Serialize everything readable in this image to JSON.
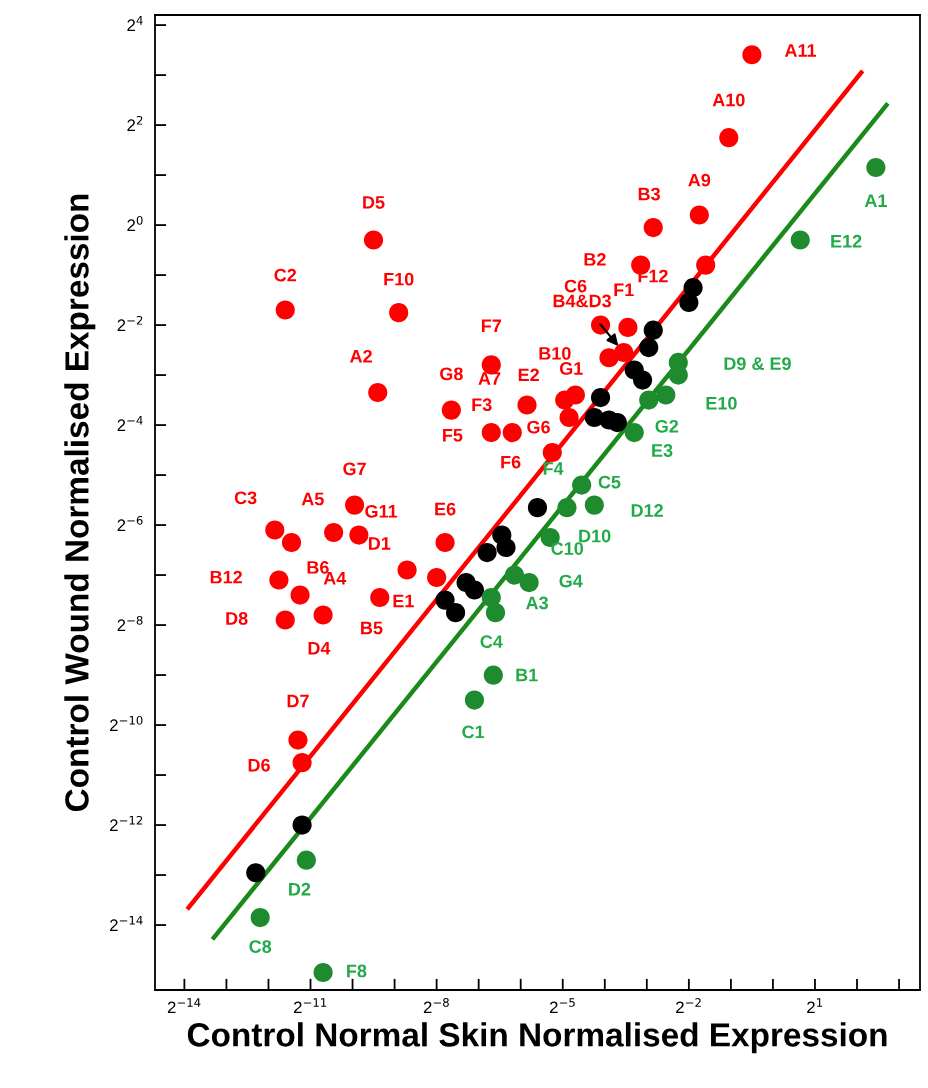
{
  "chart_data": {
    "type": "scatter",
    "xlabel": "Control Normal Skin Normalised Expression",
    "ylabel": "Control Wound Normalised Expression",
    "log": "xy",
    "grid": false,
    "xlim": [
      3.76e-05,
      11.3
    ],
    "ylim": [
      2.48e-05,
      18.4
    ],
    "xticks": [
      {
        "value": 6.103515625e-05,
        "label": "2$^{−14}$"
      },
      {
        "value": 0.0001220703125,
        "label": null
      },
      {
        "value": 0.000244140625,
        "label": null
      },
      {
        "value": 0.00048828125,
        "label": "2$^{−11}$"
      },
      {
        "value": 0.0009765625,
        "label": null
      },
      {
        "value": 0.001953125,
        "label": null
      },
      {
        "value": 0.00390625,
        "label": "2$^{−8}$"
      },
      {
        "value": 0.0078125,
        "label": null
      },
      {
        "value": 0.015625,
        "label": null
      },
      {
        "value": 0.03125,
        "label": "2$^{−5}$"
      },
      {
        "value": 0.0625,
        "label": null
      },
      {
        "value": 0.125,
        "label": null
      },
      {
        "value": 0.25,
        "label": "2$^{−2}$"
      },
      {
        "value": 0.5,
        "label": null
      },
      {
        "value": 1,
        "label": null
      },
      {
        "value": 2,
        "label": "2$^{1}$"
      },
      {
        "value": 4,
        "label": null
      },
      {
        "value": 8,
        "label": null
      }
    ],
    "yticks": [
      {
        "value": 6.103515625e-05,
        "label": "2$^{−14}$"
      },
      {
        "value": 0.0001220703125,
        "label": null
      },
      {
        "value": 0.000244140625,
        "label": "2$^{−12}$"
      },
      {
        "value": 0.00048828125,
        "label": null
      },
      {
        "value": 0.0009765625,
        "label": "2$^{−10}$"
      },
      {
        "value": 0.001953125,
        "label": null
      },
      {
        "value": 0.00390625,
        "label": "2$^{−8}$"
      },
      {
        "value": 0.0078125,
        "label": null
      },
      {
        "value": 0.015625,
        "label": "2$^{−6}$"
      },
      {
        "value": 0.03125,
        "label": null
      },
      {
        "value": 0.0625,
        "label": "2$^{−4}$"
      },
      {
        "value": 0.125,
        "label": null
      },
      {
        "value": 0.25,
        "label": "2$^{−2}$"
      },
      {
        "value": 0.5,
        "label": null
      },
      {
        "value": 1,
        "label": "2$^{0}$"
      },
      {
        "value": 2,
        "label": null
      },
      {
        "value": 4,
        "label": "2$^{2}$"
      },
      {
        "value": 8,
        "label": null
      },
      {
        "value": 16,
        "label": "2$^{4}$"
      }
    ],
    "series": [
      {
        "type": "line",
        "color": "#ff0000",
        "x": [
          6.54e-05,
          4.287
        ],
        "values": [
          7.78e-05,
          8.28
        ]
      },
      {
        "type": "line",
        "color": "#1a8a1a",
        "x": [
          9.92e-05,
          6.5
        ],
        "values": [
          5.13e-05,
          5.28
        ]
      },
      {
        "marker": "circle",
        "color": "#ff0000",
        "x": [
          0.707,
          0.483,
          0.297,
          0.139,
          0.113,
          0.33,
          0.0583,
          0.0915,
          0.0854,
          0.067,
          0.00138,
          0.000322,
          0.00209,
          0.00148,
          0.00962,
          0.00498,
          0.01734,
          0.0323,
          0.0385,
          0.0347,
          0.0136,
          0.00962,
          0.0263,
          0.00101,
          0.000271,
          0.000357,
          0.000715,
          0.001084,
          0.00449,
          0.0024,
          0.00391,
          0.00029,
          0.000411,
          0.00153,
          0.000322,
          0.000601,
          0.000397,
          0.000425
        ],
        "values": [
          10.6,
          3.36,
          1.15,
          0.966,
          0.574,
          0.574,
          0.25,
          0.242,
          0.171,
          0.159,
          0.813,
          0.308,
          0.297,
          0.0981,
          0.144,
          0.0769,
          0.0825,
          0.0884,
          0.0948,
          0.0694,
          0.0563,
          0.0563,
          0.0427,
          0.0206,
          0.0146,
          0.01226,
          0.0141,
          0.0136,
          0.01226,
          0.00838,
          0.00755,
          0.00729,
          0.00592,
          0.00572,
          0.00419,
          0.00449,
          0.000793,
          0.00058
        ]
      },
      {
        "marker": "circle",
        "color": "#000000",
        "x": [
          0.268,
          0.25,
          0.139,
          0.129,
          0.1016,
          0.1166,
          0.0583,
          0.0526,
          0.067,
          0.0769,
          0.0206,
          0.01144,
          0.01226,
          0.00898,
          0.00635,
          0.00729,
          0.00449,
          0.00534,
          0.000425,
          0.000198
        ],
        "values": [
          0.42,
          0.342,
          0.233,
          0.183,
          0.134,
          0.1166,
          0.0915,
          0.0694,
          0.067,
          0.0647,
          0.0199,
          0.0136,
          0.01144,
          0.01067,
          0.00704,
          0.00635,
          0.00552,
          0.00464,
          0.000244,
          0.000126
        ]
      },
      {
        "marker": "circle",
        "color": "#1e8c2e",
        "x": [
          5.46,
          1.569,
          0.21,
          0.21,
          0.171,
          0.129,
          0.1016,
          0.0427,
          0.0335,
          0.0526,
          0.0254,
          0.01409,
          0.01795,
          0.00962,
          0.01031,
          0.00995,
          0.00729,
          0.000456,
          0.000213,
          0.000601
        ],
        "values": [
          2.22,
          0.813,
          0.149,
          0.125,
          0.0948,
          0.0884,
          0.0563,
          0.0272,
          0.0199,
          0.0206,
          0.01314,
          0.00781,
          0.00704,
          0.00572,
          0.00464,
          0.00195,
          0.00138,
          0.00015,
          6.77e-05,
          3.16e-05
        ]
      }
    ],
    "annotations": [
      {
        "text": "A11",
        "x": 0.707,
        "y": 10.6
      },
      {
        "text": "A10",
        "x": 0.483,
        "y": 3.36
      },
      {
        "text": "A9",
        "x": 0.297,
        "y": 1.15
      },
      {
        "text": "B3",
        "x": 0.139,
        "y": 0.966
      },
      {
        "text": "B2",
        "x": 0.113,
        "y": 0.574
      },
      {
        "text": "F12",
        "x": 0.33,
        "y": 0.574
      },
      {
        "text": "C6",
        "x": 0.0583,
        "y": 0.25
      },
      {
        "text": "F1",
        "x": 0.0915,
        "y": 0.242
      },
      {
        "text": "B4&D3",
        "x": 0.0854,
        "y": 0.171
      },
      {
        "text": "B10",
        "x": 0.067,
        "y": 0.159
      },
      {
        "text": "D5",
        "x": 0.00138,
        "y": 0.813
      },
      {
        "text": "C2",
        "x": 0.000322,
        "y": 0.308
      },
      {
        "text": "F10",
        "x": 0.00209,
        "y": 0.297
      },
      {
        "text": "A2",
        "x": 0.00148,
        "y": 0.0981
      },
      {
        "text": "F7",
        "x": 0.00962,
        "y": 0.144
      },
      {
        "text": "G8",
        "x": 0.00498,
        "y": 0.0769
      },
      {
        "text": "A7",
        "x": 0.01734,
        "y": 0.0825
      },
      {
        "text": "E2",
        "x": 0.0323,
        "y": 0.0884
      },
      {
        "text": "G1",
        "x": 0.0385,
        "y": 0.0948
      },
      {
        "text": "G6",
        "x": 0.0347,
        "y": 0.0694
      },
      {
        "text": "F3",
        "x": 0.0136,
        "y": 0.0563
      },
      {
        "text": "F5",
        "x": 0.00962,
        "y": 0.0563
      },
      {
        "text": "F6",
        "x": 0.0263,
        "y": 0.0427
      },
      {
        "text": "G7",
        "x": 0.00101,
        "y": 0.0206
      },
      {
        "text": "C3",
        "x": 0.000271,
        "y": 0.0146
      },
      {
        "text": "B6",
        "x": 0.000357,
        "y": 0.01226
      },
      {
        "text": "A5",
        "x": 0.000715,
        "y": 0.0141
      },
      {
        "text": "G11",
        "x": 0.001084,
        "y": 0.0136
      },
      {
        "text": "E6",
        "x": 0.00449,
        "y": 0.01226
      },
      {
        "text": "D1",
        "x": 0.0024,
        "y": 0.00838
      },
      {
        "text": "E1",
        "x": 0.00391,
        "y": 0.00755
      },
      {
        "text": "B12",
        "x": 0.00029,
        "y": 0.00729
      },
      {
        "text": "A4",
        "x": 0.000411,
        "y": 0.00592
      },
      {
        "text": "B5",
        "x": 0.00153,
        "y": 0.00572
      },
      {
        "text": "D8",
        "x": 0.000322,
        "y": 0.00419
      },
      {
        "text": "D4",
        "x": 0.000601,
        "y": 0.00449
      },
      {
        "text": "D7",
        "x": 0.000397,
        "y": 0.000793
      },
      {
        "text": "D6",
        "x": 0.000425,
        "y": 0.00058
      },
      {
        "text": "A1",
        "x": 5.46,
        "y": 2.22
      },
      {
        "text": "E12",
        "x": 1.569,
        "y": 0.813
      },
      {
        "text": "D9 & E9",
        "x": 0.21,
        "y": 0.149
      },
      {
        "text": "E10",
        "x": 0.171,
        "y": 0.0948
      },
      {
        "text": "G2",
        "x": 0.129,
        "y": 0.0884
      },
      {
        "text": "E3",
        "x": 0.1016,
        "y": 0.0563
      },
      {
        "text": "C5",
        "x": 0.0427,
        "y": 0.0272
      },
      {
        "text": "F4",
        "x": 0.0335,
        "y": 0.0199
      },
      {
        "text": "D12",
        "x": 0.0526,
        "y": 0.0206
      },
      {
        "text": "D10",
        "x": 0.0254,
        "y": 0.01314
      },
      {
        "text": "C10",
        "x": 0.01409,
        "y": 0.00781
      },
      {
        "text": "G4",
        "x": 0.01795,
        "y": 0.00704
      },
      {
        "text": "A3",
        "x": 0.00962,
        "y": 0.00572
      },
      {
        "text": "C4",
        "x": 0.01031,
        "y": 0.00464
      },
      {
        "text": "B1",
        "x": 0.00995,
        "y": 0.00195
      },
      {
        "text": "C1",
        "x": 0.00729,
        "y": 0.00138
      },
      {
        "text": "D2",
        "x": 0.000456,
        "y": 0.00015
      },
      {
        "text": "C8",
        "x": 0.000213,
        "y": 6.77e-05
      },
      {
        "text": "F8",
        "x": 0.000601,
        "y": 3.16e-05
      }
    ]
  }
}
